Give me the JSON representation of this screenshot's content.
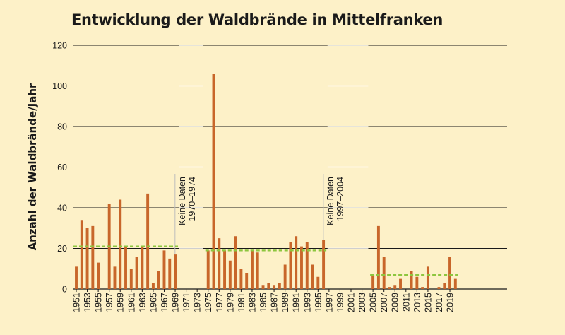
{
  "chart_data": {
    "type": "bar",
    "title": "Entwicklung der Waldbrände in Mittelfranken",
    "ylabel": "Anzahl der Waldbrände/Jahr",
    "xlabel": "",
    "ylim": [
      0,
      120
    ],
    "yticks": [
      0,
      20,
      40,
      60,
      80,
      100,
      120
    ],
    "grid": true,
    "colors": {
      "bar": "#c8662a",
      "mean": "#8dc63f",
      "gap": "#cfcfcf"
    },
    "x": [
      1951,
      1952,
      1953,
      1954,
      1955,
      1956,
      1957,
      1958,
      1959,
      1960,
      1961,
      1962,
      1963,
      1964,
      1965,
      1966,
      1967,
      1968,
      1969,
      1970,
      1971,
      1972,
      1973,
      1974,
      1975,
      1976,
      1977,
      1978,
      1979,
      1980,
      1981,
      1982,
      1983,
      1984,
      1985,
      1986,
      1987,
      1988,
      1989,
      1990,
      1991,
      1992,
      1993,
      1994,
      1995,
      1996,
      1997,
      1998,
      1999,
      2000,
      2001,
      2002,
      2003,
      2004,
      2005,
      2006,
      2007,
      2008,
      2009,
      2010,
      2011,
      2012,
      2013,
      2014,
      2015,
      2016,
      2017,
      2018,
      2019,
      2020
    ],
    "values": [
      11,
      34,
      30,
      31,
      13,
      0,
      42,
      11,
      44,
      21,
      10,
      16,
      21,
      47,
      3,
      9,
      19,
      15,
      17,
      null,
      null,
      null,
      null,
      null,
      19,
      106,
      25,
      19,
      14,
      26,
      10,
      8,
      19,
      18,
      2,
      3,
      2,
      3,
      12,
      23,
      26,
      21,
      23,
      12,
      6,
      24,
      null,
      null,
      null,
      null,
      null,
      null,
      null,
      null,
      7,
      31,
      16,
      1,
      2,
      5,
      0,
      9,
      6,
      1,
      11,
      0,
      1,
      3,
      16,
      5
    ],
    "xtick_labels": [
      "1951",
      "1953",
      "1955",
      "1957",
      "1959",
      "1961",
      "1963",
      "1965",
      "1967",
      "1969",
      "1971",
      "1973",
      "1975",
      "1977",
      "1979",
      "1981",
      "1983",
      "1985",
      "1987",
      "1989",
      "1991",
      "1993",
      "1995",
      "1997",
      "1999",
      "2001",
      "2003",
      "2005",
      "2007",
      "2009",
      "2011",
      "2013",
      "2015",
      "2017",
      "2019"
    ],
    "mean_lines": [
      {
        "from": 1951,
        "to": 1969,
        "value": 21
      },
      {
        "from": 1975,
        "to": 1996,
        "value": 19
      },
      {
        "from": 2005,
        "to": 2020,
        "value": 7
      }
    ],
    "gaps": [
      {
        "from": 1970,
        "to": 1974,
        "label_line1": "Keine Daten",
        "label_line2": "1970–1974"
      },
      {
        "from": 1997,
        "to": 2004,
        "label_line1": "Keine Daten",
        "label_line2": "1997–2004"
      }
    ]
  }
}
